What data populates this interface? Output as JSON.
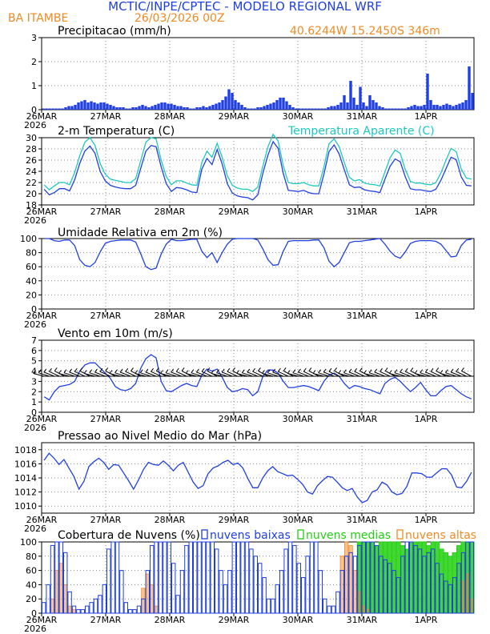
{
  "header": {
    "title": "MCTIC/INPE/CPTEC  -  MODELO REGIONAL WRF",
    "location": "BA ITAMBE",
    "run": "26/03/2026 00Z",
    "coords": "40.6244W 15.2450S 346m"
  },
  "colors": {
    "blue": "#1f3fe0",
    "cyan": "#1ec8c0",
    "orange": "#f08a24",
    "green": "#22d011",
    "black": "#000000",
    "grid": "#888888"
  },
  "x_ticks": [
    "26MAR",
    "27MAR",
    "28MAR",
    "29MAR",
    "30MAR",
    "31MAR",
    "1APR"
  ],
  "x_year": "2026",
  "chart_data": [
    {
      "type": "bar",
      "title": "Precipitacao (mm/h)",
      "ylim": [
        0,
        3
      ],
      "yticks": [
        "0",
        "1",
        "2",
        "3"
      ],
      "series": [
        {
          "name": "Precipitacao",
          "color": "#1f3fe0",
          "values": [
            0.05,
            0.05,
            0.05,
            0.05,
            0.05,
            0.05,
            0.05,
            0.1,
            0.15,
            0.15,
            0.2,
            0.3,
            0.35,
            0.4,
            0.3,
            0.35,
            0.3,
            0.25,
            0.3,
            0.3,
            0.25,
            0.2,
            0.15,
            0.1,
            0.1,
            0.1,
            0.05,
            0.05,
            0.1,
            0.1,
            0.15,
            0.2,
            0.15,
            0.1,
            0.15,
            0.2,
            0.25,
            0.3,
            0.3,
            0.25,
            0.25,
            0.2,
            0.15,
            0.15,
            0.1,
            0.1,
            0.05,
            0.05,
            0.1,
            0.1,
            0.15,
            0.1,
            0.15,
            0.2,
            0.25,
            0.3,
            0.4,
            0.55,
            0.85,
            0.7,
            0.4,
            0.3,
            0.2,
            0.1,
            0.05,
            0.05,
            0.05,
            0.1,
            0.1,
            0.15,
            0.2,
            0.25,
            0.3,
            0.4,
            0.5,
            0.5,
            0.35,
            0.2,
            0.1,
            0.05,
            0.05,
            0.05,
            0.05,
            0.05,
            0.05,
            0.05,
            0.05,
            0.05,
            0.05,
            0.1,
            0.15,
            0.15,
            0.2,
            0.3,
            0.6,
            0.3,
            1.2,
            0.5,
            0.2,
            0.95,
            0.3,
            0.15,
            0.6,
            0.4,
            0.3,
            0.15,
            0.1,
            0.05,
            0.05,
            0.05,
            0.05,
            0.05,
            0.05,
            0.05,
            0.1,
            0.15,
            0.2,
            0.15,
            0.15,
            0.2,
            1.5,
            0.4,
            0.2,
            0.2,
            0.15,
            0.2,
            0.25,
            0.2,
            0.15,
            0.2,
            0.25,
            0.3,
            0.4,
            1.8,
            0.7
          ]
        }
      ]
    },
    {
      "type": "line",
      "title": "2-m Temperatura (C)",
      "ylim": [
        18,
        30
      ],
      "yticks": [
        "18",
        "20",
        "22",
        "24",
        "26",
        "28",
        "30"
      ],
      "series": [
        {
          "name": "2-m Temperatura (C)",
          "color": "#1f3fe0",
          "values": [
            20.8,
            19.8,
            20.2,
            20.9,
            20.9,
            20.5,
            22.5,
            25.4,
            27.6,
            28.5,
            27.2,
            24.0,
            22.3,
            21.5,
            21.2,
            21.0,
            20.9,
            20.9,
            21.5,
            24.6,
            27.6,
            28.6,
            28.4,
            24.8,
            21.8,
            20.4,
            21.1,
            21.0,
            20.7,
            20.3,
            20.2,
            24.4,
            26.3,
            25.2,
            27.9,
            25.3,
            21.8,
            20.1,
            19.6,
            19.4,
            19.3,
            18.9,
            19.8,
            23.7,
            26.9,
            29.3,
            28.1,
            23.6,
            20.6,
            20.5,
            20.4,
            20.6,
            20.2,
            20.0,
            20.0,
            23.5,
            27.5,
            28.7,
            27.1,
            24.3,
            21.6,
            21.1,
            21.2,
            20.7,
            20.5,
            20.4,
            20.2,
            22.6,
            24.9,
            26.2,
            25.7,
            23.0,
            20.9,
            20.7,
            20.7,
            20.5,
            20.4,
            20.8,
            22.4,
            24.5,
            26.5,
            26.1,
            23.0,
            21.5,
            21.4
          ]
        },
        {
          "name": "Temperatura Aparente (C)",
          "color": "#1ec8c0",
          "values": [
            21.6,
            20.7,
            21.4,
            22.0,
            22.0,
            21.6,
            23.8,
            26.8,
            29.2,
            30.0,
            28.6,
            25.4,
            23.5,
            22.6,
            22.4,
            22.2,
            22.0,
            22.0,
            22.7,
            26.0,
            29.2,
            30.0,
            29.8,
            26.0,
            23.1,
            21.6,
            22.3,
            22.3,
            21.9,
            21.6,
            21.5,
            25.6,
            27.6,
            26.5,
            29.0,
            26.5,
            23.2,
            21.5,
            21.0,
            20.8,
            20.8,
            20.4,
            21.2,
            25.0,
            28.4,
            30.6,
            29.4,
            25.0,
            22.0,
            21.8,
            21.8,
            22.0,
            21.6,
            21.4,
            21.4,
            24.8,
            28.9,
            29.8,
            28.4,
            25.6,
            22.9,
            22.3,
            22.5,
            21.9,
            21.7,
            21.6,
            21.4,
            23.9,
            26.4,
            27.8,
            27.2,
            24.3,
            22.2,
            21.9,
            21.9,
            21.7,
            21.6,
            22.0,
            23.7,
            26.0,
            28.1,
            27.5,
            24.4,
            22.8,
            22.6
          ]
        }
      ]
    },
    {
      "type": "line",
      "title": "Umidade Relativa em 2m (%)",
      "ylim": [
        0,
        100
      ],
      "yticks": [
        "0",
        "20",
        "40",
        "60",
        "80",
        "100"
      ],
      "series": [
        {
          "name": "Umidade Relativa",
          "color": "#1f3fe0",
          "values": [
            100,
            100,
            97,
            96,
            98,
            98,
            90,
            70,
            62,
            60,
            66,
            81,
            93,
            96,
            97,
            98,
            98,
            98,
            95,
            78,
            60,
            56,
            58,
            78,
            92,
            99,
            97,
            97,
            98,
            99,
            99,
            82,
            73,
            80,
            66,
            80,
            92,
            99,
            100,
            100,
            100,
            100,
            98,
            85,
            70,
            62,
            63,
            82,
            96,
            97,
            97,
            97,
            97,
            98,
            98,
            87,
            68,
            60,
            66,
            80,
            94,
            96,
            96,
            97,
            98,
            99,
            100,
            92,
            82,
            75,
            72,
            81,
            93,
            96,
            97,
            97,
            97,
            96,
            92,
            83,
            74,
            75,
            90,
            98,
            99
          ]
        }
      ]
    },
    {
      "type": "line",
      "title": "Vento em 10m (m/s)",
      "ylim": [
        0,
        7
      ],
      "yticks": [
        "0",
        "1",
        "2",
        "3",
        "4",
        "5",
        "6",
        "7"
      ],
      "series": [
        {
          "name": "Vento em 10m",
          "color": "#1f3fe0",
          "values": [
            1.5,
            1.2,
            2.0,
            2.5,
            2.6,
            2.7,
            3.0,
            4.0,
            4.6,
            4.8,
            4.8,
            4.3,
            3.8,
            3.3,
            2.5,
            2.2,
            2.1,
            2.3,
            2.8,
            4.3,
            5.2,
            5.6,
            5.3,
            3.0,
            2.1,
            2.0,
            2.3,
            2.6,
            2.8,
            2.6,
            2.5,
            3.6,
            4.2,
            4.0,
            4.2,
            3.4,
            2.4,
            2.0,
            2.1,
            2.3,
            2.2,
            1.6,
            2.0,
            3.5,
            4.1,
            4.1,
            3.8,
            3.0,
            2.4,
            2.4,
            2.5,
            2.6,
            2.5,
            2.3,
            2.1,
            3.0,
            3.6,
            3.8,
            3.5,
            2.8,
            2.3,
            2.6,
            2.5,
            2.3,
            2.2,
            2.0,
            1.8,
            2.8,
            3.2,
            3.4,
            3.0,
            2.5,
            2.0,
            2.4,
            2.9,
            2.2,
            1.6,
            1.6,
            2.1,
            2.5,
            2.6,
            2.2,
            1.8,
            1.5,
            1.3
          ]
        }
      ]
    },
    {
      "type": "line",
      "title": "Pressao ao Nivel Medio do Mar (hPa)",
      "ylim": [
        1009,
        1019
      ],
      "yticks": [
        "1010",
        "1012",
        "1014",
        "1016",
        "1018"
      ],
      "series": [
        {
          "name": "Pressao",
          "color": "#1f3fe0",
          "values": [
            1016.5,
            1017.5,
            1016.8,
            1015.9,
            1016.6,
            1015.4,
            1014.2,
            1012.4,
            1013.5,
            1015.6,
            1016.3,
            1016.8,
            1016.2,
            1015.2,
            1015.9,
            1015.8,
            1014.7,
            1013.6,
            1012.4,
            1013.7,
            1015.2,
            1016.2,
            1015.9,
            1015.8,
            1016.4,
            1015.8,
            1015.0,
            1015.8,
            1016.2,
            1014.8,
            1013.4,
            1012.5,
            1012.9,
            1014.6,
            1015.4,
            1015.7,
            1016.2,
            1016.5,
            1015.9,
            1016.1,
            1015.4,
            1013.9,
            1012.6,
            1012.6,
            1014.0,
            1015.0,
            1015.6,
            1014.9,
            1014.6,
            1014.3,
            1014.4,
            1013.8,
            1013.1,
            1012.0,
            1011.7,
            1012.9,
            1013.6,
            1014.2,
            1014.1,
            1013.4,
            1012.6,
            1012.2,
            1012.5,
            1011.3,
            1010.5,
            1010.8,
            1012.0,
            1012.3,
            1013.4,
            1013.0,
            1012.0,
            1011.6,
            1011.8,
            1012.8,
            1014.7,
            1014.7,
            1014.6,
            1014.1,
            1014.1,
            1014.7,
            1015.3,
            1015.3,
            1014.4,
            1012.7,
            1012.6,
            1013.5,
            1014.8
          ]
        }
      ]
    },
    {
      "type": "bar",
      "title": "Cobertura de Nuvens (%)",
      "ylim": [
        0,
        100
      ],
      "yticks": [
        "0",
        "20",
        "40",
        "60",
        "80",
        "100"
      ],
      "legend": [
        {
          "name": "nuvens baixas",
          "color": "#1f3fe0"
        },
        {
          "name": "nuvens medias",
          "color": "#22d011"
        },
        {
          "name": "nuvens altas",
          "color": "#f08a24"
        }
      ],
      "series": [
        {
          "name": "nuvens baixas",
          "values": [
            15,
            40,
            95,
            100,
            100,
            85,
            30,
            10,
            5,
            5,
            10,
            15,
            20,
            25,
            40,
            90,
            100,
            100,
            60,
            15,
            5,
            5,
            10,
            20,
            60,
            95,
            100,
            100,
            100,
            100,
            70,
            25,
            60,
            95,
            100,
            100,
            100,
            100,
            100,
            100,
            90,
            60,
            40,
            60,
            100,
            100,
            100,
            100,
            90,
            80,
            70,
            50,
            20,
            20,
            40,
            60,
            90,
            100,
            95,
            70,
            50,
            80,
            100,
            100,
            60,
            20,
            10,
            10,
            30,
            60,
            80,
            85,
            80,
            95,
            100,
            100,
            100,
            95,
            80,
            75,
            70,
            60,
            50,
            80,
            100,
            100,
            95,
            90,
            80,
            85,
            90,
            70,
            55,
            45,
            40,
            50,
            70,
            85,
            100,
            100
          ]
        },
        {
          "name": "nuvens medias",
          "values": [
            0,
            0,
            0,
            0,
            0,
            0,
            0,
            0,
            0,
            0,
            0,
            0,
            0,
            0,
            0,
            0,
            0,
            0,
            0,
            0,
            0,
            0,
            0,
            0,
            0,
            0,
            0,
            0,
            0,
            0,
            0,
            0,
            0,
            0,
            0,
            0,
            0,
            0,
            0,
            0,
            0,
            0,
            0,
            0,
            0,
            0,
            0,
            0,
            0,
            0,
            0,
            0,
            0,
            0,
            0,
            0,
            0,
            0,
            0,
            0,
            0,
            0,
            0,
            0,
            0,
            0,
            0,
            0,
            0,
            0,
            0,
            0,
            0,
            100,
            100,
            100,
            100,
            95,
            100,
            100,
            100,
            100,
            100,
            95,
            90,
            100,
            100,
            100,
            100,
            95,
            100,
            100,
            90,
            85,
            80,
            85,
            95,
            100,
            100,
            100
          ]
        },
        {
          "name": "nuvens altas",
          "values": [
            0,
            0,
            20,
            60,
            70,
            40,
            10,
            5,
            0,
            0,
            0,
            0,
            0,
            0,
            0,
            0,
            0,
            0,
            0,
            0,
            0,
            0,
            0,
            35,
            55,
            40,
            10,
            0,
            0,
            0,
            0,
            0,
            0,
            0,
            0,
            0,
            0,
            0,
            0,
            0,
            0,
            0,
            0,
            0,
            0,
            0,
            0,
            0,
            0,
            0,
            0,
            0,
            0,
            0,
            0,
            0,
            0,
            0,
            0,
            0,
            0,
            0,
            0,
            0,
            0,
            0,
            0,
            0,
            0,
            80,
            100,
            95,
            60,
            30,
            10,
            5,
            0,
            0,
            0,
            0,
            0,
            0,
            0,
            0,
            0,
            0,
            0,
            0,
            0,
            0,
            0,
            0,
            0,
            0,
            0,
            0,
            0,
            45,
            55,
            20
          ]
        }
      ]
    }
  ]
}
